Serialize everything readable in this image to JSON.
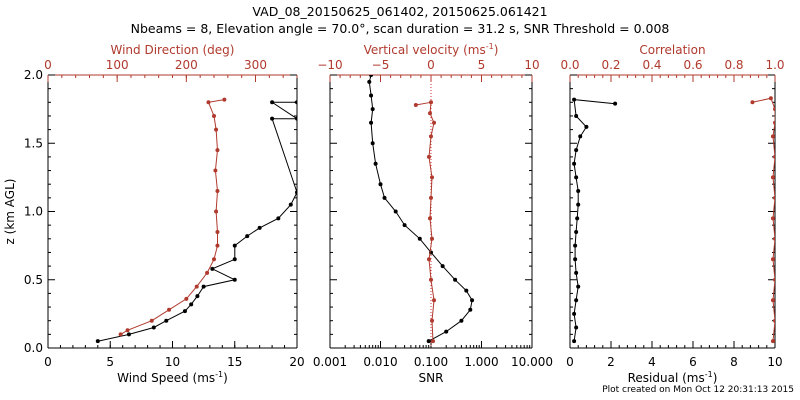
{
  "title_line1": "VAD_08_20150625_061402, 20150625.061421",
  "title_line2": "Nbeams = 8, Elevation angle = 70.0°, scan duration = 31.2 s, SNR Threshold = 0.008",
  "credit": "Plot created on Mon Oct 12 20:31:13 2015",
  "colors": {
    "primary": "#000000",
    "secondary": "#b03a2e",
    "zero_line": "#d03030"
  },
  "chart_data": [
    {
      "type": "line",
      "panel": "wind",
      "ylabel": "z (km AGL)",
      "ylim": [
        0,
        2.0
      ],
      "y_ticks": [
        "0.0",
        "0.5",
        "1.0",
        "1.5",
        "2.0"
      ],
      "bottom_axis": {
        "label": "Wind Speed (ms",
        "label_sup": "-1",
        "label_end": ")",
        "lim": [
          0,
          20
        ],
        "ticks": [
          "0",
          "5",
          "10",
          "15",
          "20"
        ]
      },
      "top_axis": {
        "label": "Wind Direction (deg)",
        "lim": [
          0,
          360
        ],
        "ticks": [
          "0",
          "100",
          "200",
          "300"
        ]
      },
      "series": [
        {
          "axis": "bottom",
          "color": "#000000",
          "x": [
            4,
            6.5,
            8.5,
            9.5,
            11,
            11.5,
            12,
            12.5,
            15,
            13.2,
            15,
            15,
            16,
            17,
            18.5,
            19.5,
            20,
            18,
            20,
            18,
            20
          ],
          "y": [
            0.05,
            0.1,
            0.15,
            0.2,
            0.27,
            0.32,
            0.38,
            0.45,
            0.5,
            0.58,
            0.65,
            0.75,
            0.82,
            0.88,
            0.95,
            1.05,
            1.14,
            1.68,
            1.68,
            1.8,
            1.8
          ]
        },
        {
          "axis": "top",
          "color": "#b03a2e",
          "x": [
            105,
            115,
            150,
            175,
            200,
            215,
            230,
            240,
            245,
            245,
            243,
            245,
            242,
            245,
            243,
            240,
            232,
            255
          ],
          "y": [
            0.1,
            0.13,
            0.2,
            0.28,
            0.36,
            0.45,
            0.55,
            0.65,
            0.75,
            0.85,
            1.0,
            1.15,
            1.3,
            1.45,
            1.6,
            1.7,
            1.8,
            1.82
          ]
        }
      ]
    },
    {
      "type": "line",
      "panel": "snr",
      "ylim": [
        0,
        2.0
      ],
      "bottom_axis": {
        "label": "SNR",
        "scale": "log",
        "lim": [
          0.001,
          10
        ],
        "ticks": [
          "0.001",
          "0.010",
          "0.100",
          "1.000",
          "10.000"
        ]
      },
      "top_axis": {
        "label": "Vertical velocity (ms",
        "label_sup": "-1",
        "label_end": ")",
        "lim": [
          -10,
          10
        ],
        "ticks": [
          "−10",
          "−5",
          "0",
          "5",
          "10"
        ]
      },
      "series": [
        {
          "axis": "bottom",
          "color": "#000000",
          "x": [
            0.09,
            0.2,
            0.4,
            0.6,
            0.65,
            0.5,
            0.3,
            0.17,
            0.1,
            0.06,
            0.03,
            0.02,
            0.012,
            0.01,
            0.008,
            0.007,
            0.0065,
            0.007,
            0.0065,
            0.006,
            0.0065
          ],
          "y": [
            0.05,
            0.12,
            0.2,
            0.28,
            0.35,
            0.42,
            0.5,
            0.6,
            0.7,
            0.8,
            0.9,
            1.0,
            1.1,
            1.2,
            1.35,
            1.5,
            1.65,
            1.75,
            1.85,
            1.95,
            2.0
          ]
        },
        {
          "axis": "top",
          "color": "#b03a2e",
          "x": [
            0.2,
            0.1,
            0.3,
            0.0,
            -0.2,
            0.1,
            -0.1,
            0.0,
            0.1,
            -0.2,
            0.0,
            0.3,
            -0.1,
            0.0,
            -1.5
          ],
          "y": [
            0.05,
            0.2,
            0.35,
            0.5,
            0.65,
            0.8,
            0.95,
            1.1,
            1.25,
            1.4,
            1.55,
            1.65,
            1.72,
            1.8,
            1.78
          ]
        }
      ]
    },
    {
      "type": "line",
      "panel": "residual",
      "ylim": [
        0,
        2.0
      ],
      "bottom_axis": {
        "label": "Residual (ms",
        "label_sup": "-1",
        "label_end": ")",
        "lim": [
          0,
          10
        ],
        "ticks": [
          "0",
          "2",
          "4",
          "6",
          "8",
          "10"
        ]
      },
      "top_axis": {
        "label": "Correlation",
        "lim": [
          0.0,
          1.0
        ],
        "ticks": [
          "0.0",
          "0.2",
          "0.4",
          "0.6",
          "0.8",
          "1.0"
        ]
      },
      "series": [
        {
          "axis": "bottom",
          "color": "#000000",
          "x": [
            0.2,
            0.3,
            0.2,
            0.3,
            0.4,
            0.3,
            0.25,
            0.25,
            0.3,
            0.35,
            0.4,
            0.4,
            0.3,
            0.2,
            0.3,
            0.5,
            0.8,
            0.3,
            0.2,
            2.2
          ],
          "y": [
            0.05,
            0.15,
            0.25,
            0.35,
            0.45,
            0.55,
            0.65,
            0.75,
            0.85,
            0.95,
            1.05,
            1.15,
            1.25,
            1.35,
            1.45,
            1.55,
            1.62,
            1.7,
            1.82,
            1.79
          ]
        },
        {
          "axis": "top",
          "color": "#b03a2e",
          "x": [
            0.99,
            1.0,
            0.99,
            1.0,
            0.99,
            1.0,
            0.99,
            1.0,
            0.99,
            1.0,
            0.99,
            1.0,
            1.0,
            0.98,
            0.89
          ],
          "y": [
            0.05,
            0.2,
            0.35,
            0.5,
            0.65,
            0.8,
            0.95,
            1.1,
            1.25,
            1.4,
            1.55,
            1.65,
            1.75,
            1.83,
            1.8
          ]
        }
      ]
    }
  ]
}
